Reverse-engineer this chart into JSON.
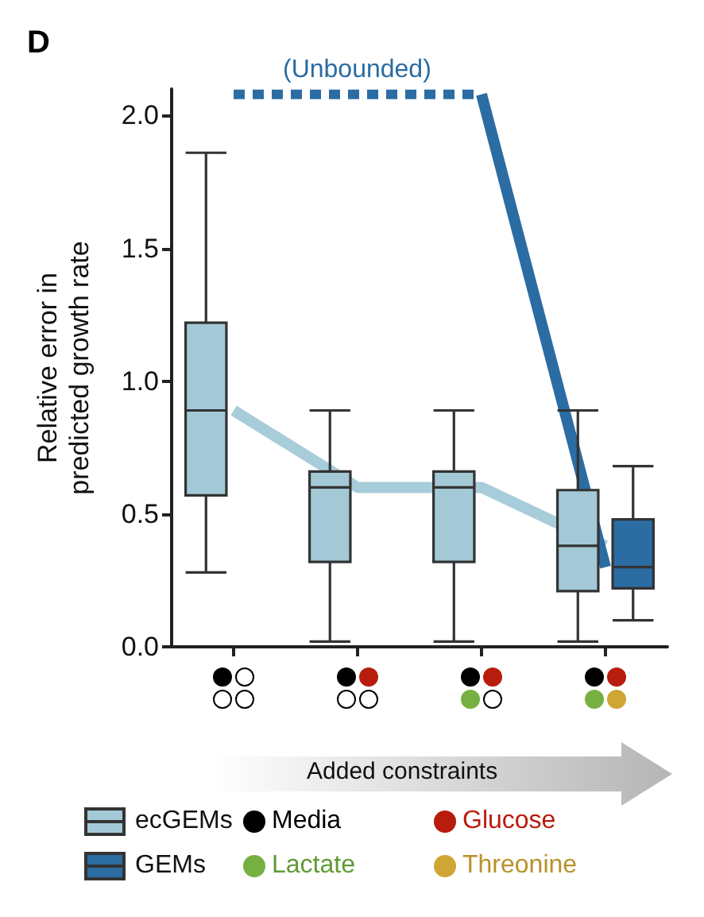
{
  "chart_data": {
    "type": "box",
    "title": "D",
    "ylabel": "Relative error in\npredicted growth rate",
    "categories": [
      null,
      null,
      null,
      null
    ],
    "series": [
      {
        "name": "ecGEMs",
        "color": "#a3c9d7",
        "boxes": [
          {
            "low": 0.28,
            "q1": 0.57,
            "median": 0.89,
            "q3": 1.22,
            "high": 1.86
          },
          {
            "low": 0.02,
            "q1": 0.32,
            "median": 0.6,
            "q3": 0.66,
            "high": 0.89
          },
          {
            "low": 0.02,
            "q1": 0.32,
            "median": 0.6,
            "q3": 0.66,
            "high": 0.89
          },
          {
            "low": 0.02,
            "q1": 0.21,
            "median": 0.38,
            "q3": 0.59,
            "high": 0.89
          }
        ]
      },
      {
        "name": "GEMs",
        "color": "#2b6ca3",
        "boxes": [
          null,
          null,
          null,
          {
            "low": 0.1,
            "q1": 0.22,
            "median": 0.3,
            "q3": 0.48,
            "high": 0.68
          }
        ]
      },
      {
        "type": "line",
        "color": "#a8cdda",
        "values": [
          0.89,
          0.6,
          0.6,
          0.38
        ]
      },
      {
        "type": "line",
        "color": "#2b6ca3",
        "line_style": "dotted",
        "values": [
          2.08,
          2.08,
          2.08,
          null
        ]
      },
      {
        "type": "line",
        "color": "#2b6ca3",
        "line_style": "solid",
        "values": [
          null,
          null,
          2.08,
          0.3
        ]
      }
    ],
    "ylim": [
      0,
      2.1
    ],
    "yticks": [
      {
        "value": 0,
        "label": "0.0"
      },
      {
        "value": 0.5,
        "label": "0.5"
      },
      {
        "value": 1,
        "label": "1.0"
      },
      {
        "value": 1.5,
        "label": "1.5"
      },
      {
        "value": 2,
        "label": "2.0"
      }
    ],
    "grid": false,
    "legend": "bottom",
    "marker": "none",
    "annotations": [
      "(Unbounded)",
      "Added constraints",
      "Media",
      "Glucose",
      "Lactate",
      "Threonine"
    ]
  }
}
